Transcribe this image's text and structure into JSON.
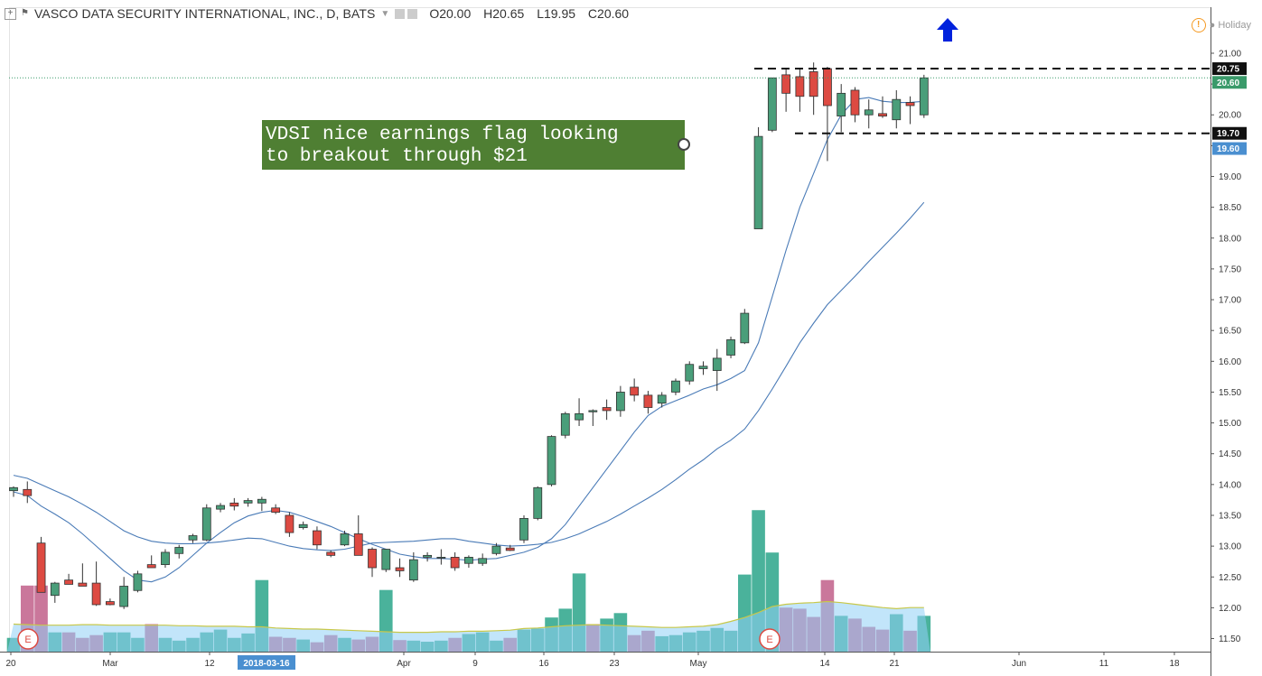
{
  "header": {
    "title": "VASCO DATA SECURITY INTERNATIONAL, INC., D, BATS",
    "open": "O20.00",
    "high": "H20.65",
    "low": "L19.95",
    "close": "C20.60",
    "holiday": "Holiday"
  },
  "annotation": {
    "text": "VDSI nice earnings flag looking\nto breakout through $21"
  },
  "colors": {
    "up": "#4a9e7a",
    "down": "#dd4a42",
    "note_bg": "#4f7f33",
    "arrow": "#0022dd",
    "ma": "#4a7bb7"
  },
  "chart_data": {
    "type": "candlestick",
    "yaxis": {
      "range": [
        11.2,
        21.3
      ],
      "ticks": [
        "11.50",
        "12.00",
        "12.50",
        "13.00",
        "13.50",
        "14.00",
        "14.50",
        "15.00",
        "15.50",
        "16.00",
        "16.50",
        "17.00",
        "17.50",
        "18.00",
        "18.50",
        "19.00",
        "19.50",
        "20.00",
        "20.50",
        "21.00"
      ],
      "price_labels": [
        {
          "value": "20.75",
          "style": "black"
        },
        {
          "value": "20.60",
          "style": "green"
        },
        {
          "value": "19.70",
          "style": "black"
        },
        {
          "value": "19.60",
          "style": "blue"
        }
      ]
    },
    "xaxis": {
      "labels": [
        "20",
        "Mar",
        "12",
        "2018-03-16",
        "Apr",
        "9",
        "16",
        "23",
        "May",
        "14",
        "21",
        "Jun",
        "11",
        "18"
      ],
      "selected": "2018-03-16"
    },
    "candles": [
      {
        "o": 13.9,
        "h": 13.97,
        "l": 13.8,
        "c": 13.95
      },
      {
        "o": 13.92,
        "h": 14.05,
        "l": 13.7,
        "c": 13.82
      },
      {
        "o": 13.05,
        "h": 13.15,
        "l": 12.25,
        "c": 12.25
      },
      {
        "o": 12.2,
        "h": 12.42,
        "l": 12.08,
        "c": 12.4
      },
      {
        "o": 12.45,
        "h": 12.55,
        "l": 12.38,
        "c": 12.38
      },
      {
        "o": 12.4,
        "h": 12.72,
        "l": 12.35,
        "c": 12.35
      },
      {
        "o": 12.4,
        "h": 12.75,
        "l": 12.03,
        "c": 12.05
      },
      {
        "o": 12.1,
        "h": 12.15,
        "l": 12.04,
        "c": 12.05
      },
      {
        "o": 12.02,
        "h": 12.5,
        "l": 11.98,
        "c": 12.35
      },
      {
        "o": 12.28,
        "h": 12.6,
        "l": 12.25,
        "c": 12.55
      },
      {
        "o": 12.7,
        "h": 12.85,
        "l": 12.65,
        "c": 12.65
      },
      {
        "o": 12.7,
        "h": 12.95,
        "l": 12.65,
        "c": 12.9
      },
      {
        "o": 12.88,
        "h": 13.02,
        "l": 12.8,
        "c": 12.98
      },
      {
        "o": 13.1,
        "h": 13.2,
        "l": 13.05,
        "c": 13.17
      },
      {
        "o": 13.1,
        "h": 13.68,
        "l": 13.08,
        "c": 13.62
      },
      {
        "o": 13.6,
        "h": 13.7,
        "l": 13.55,
        "c": 13.66
      },
      {
        "o": 13.7,
        "h": 13.78,
        "l": 13.58,
        "c": 13.65
      },
      {
        "o": 13.7,
        "h": 13.78,
        "l": 13.64,
        "c": 13.74
      },
      {
        "o": 13.7,
        "h": 13.8,
        "l": 13.57,
        "c": 13.76
      },
      {
        "o": 13.62,
        "h": 13.68,
        "l": 13.52,
        "c": 13.55
      },
      {
        "o": 13.5,
        "h": 13.55,
        "l": 13.15,
        "c": 13.22
      },
      {
        "o": 13.3,
        "h": 13.4,
        "l": 13.27,
        "c": 13.35
      },
      {
        "o": 13.25,
        "h": 13.32,
        "l": 12.95,
        "c": 13.02
      },
      {
        "o": 12.9,
        "h": 12.93,
        "l": 12.82,
        "c": 12.85
      },
      {
        "o": 13.02,
        "h": 13.25,
        "l": 13.0,
        "c": 13.2
      },
      {
        "o": 13.2,
        "h": 13.5,
        "l": 12.85,
        "c": 12.85
      },
      {
        "o": 12.95,
        "h": 12.98,
        "l": 12.5,
        "c": 12.65
      },
      {
        "o": 12.62,
        "h": 12.95,
        "l": 12.58,
        "c": 12.95
      },
      {
        "o": 12.65,
        "h": 12.8,
        "l": 12.5,
        "c": 12.6
      },
      {
        "o": 12.45,
        "h": 12.9,
        "l": 12.42,
        "c": 12.78
      },
      {
        "o": 12.82,
        "h": 12.9,
        "l": 12.75,
        "c": 12.85
      },
      {
        "o": 12.82,
        "h": 12.95,
        "l": 12.7,
        "c": 12.82
      },
      {
        "o": 12.82,
        "h": 12.9,
        "l": 12.6,
        "c": 12.65
      },
      {
        "o": 12.72,
        "h": 12.85,
        "l": 12.65,
        "c": 12.82
      },
      {
        "o": 12.72,
        "h": 12.88,
        "l": 12.68,
        "c": 12.8
      },
      {
        "o": 12.88,
        "h": 13.05,
        "l": 12.85,
        "c": 13.0
      },
      {
        "o": 12.97,
        "h": 13.02,
        "l": 12.92,
        "c": 12.93
      },
      {
        "o": 13.1,
        "h": 13.5,
        "l": 13.05,
        "c": 13.45
      },
      {
        "o": 13.45,
        "h": 13.97,
        "l": 13.42,
        "c": 13.95
      },
      {
        "o": 14.0,
        "h": 14.8,
        "l": 13.97,
        "c": 14.78
      },
      {
        "o": 14.8,
        "h": 15.18,
        "l": 14.75,
        "c": 15.15
      },
      {
        "o": 15.05,
        "h": 15.4,
        "l": 14.95,
        "c": 15.15
      },
      {
        "o": 15.18,
        "h": 15.22,
        "l": 14.95,
        "c": 15.2
      },
      {
        "o": 15.25,
        "h": 15.38,
        "l": 15.05,
        "c": 15.2
      },
      {
        "o": 15.2,
        "h": 15.6,
        "l": 15.1,
        "c": 15.5
      },
      {
        "o": 15.58,
        "h": 15.72,
        "l": 15.35,
        "c": 15.45
      },
      {
        "o": 15.45,
        "h": 15.52,
        "l": 15.15,
        "c": 15.25
      },
      {
        "o": 15.32,
        "h": 15.5,
        "l": 15.25,
        "c": 15.45
      },
      {
        "o": 15.5,
        "h": 15.72,
        "l": 15.45,
        "c": 15.68
      },
      {
        "o": 15.68,
        "h": 16.0,
        "l": 15.62,
        "c": 15.95
      },
      {
        "o": 15.88,
        "h": 16.0,
        "l": 15.78,
        "c": 15.92
      },
      {
        "o": 15.85,
        "h": 16.2,
        "l": 15.52,
        "c": 16.05
      },
      {
        "o": 16.1,
        "h": 16.4,
        "l": 16.05,
        "c": 16.35
      },
      {
        "o": 16.3,
        "h": 16.85,
        "l": 16.28,
        "c": 16.78
      },
      {
        "o": 18.15,
        "h": 19.8,
        "l": 18.15,
        "c": 19.65
      },
      {
        "o": 19.75,
        "h": 20.6,
        "l": 19.72,
        "c": 20.6
      },
      {
        "o": 20.65,
        "h": 20.75,
        "l": 20.05,
        "c": 20.35
      },
      {
        "o": 20.62,
        "h": 20.75,
        "l": 20.05,
        "c": 20.3
      },
      {
        "o": 20.7,
        "h": 20.85,
        "l": 20.0,
        "c": 20.3
      },
      {
        "o": 20.75,
        "h": 20.78,
        "l": 19.25,
        "c": 20.15
      },
      {
        "o": 19.98,
        "h": 20.5,
        "l": 19.72,
        "c": 20.35
      },
      {
        "o": 20.4,
        "h": 20.45,
        "l": 19.88,
        "c": 20.0
      },
      {
        "o": 20.0,
        "h": 20.25,
        "l": 19.78,
        "c": 20.08
      },
      {
        "o": 20.02,
        "h": 20.3,
        "l": 19.95,
        "c": 19.98
      },
      {
        "o": 19.92,
        "h": 20.4,
        "l": 19.78,
        "c": 20.25
      },
      {
        "o": 20.2,
        "h": 20.3,
        "l": 19.85,
        "c": 20.15
      },
      {
        "o": 20.0,
        "h": 20.65,
        "l": 19.95,
        "c": 20.6
      }
    ],
    "volume_up": [
      true,
      false,
      false,
      true,
      false,
      false,
      false,
      true,
      true,
      true,
      false,
      true,
      true,
      true,
      true,
      true,
      true,
      true,
      true,
      false,
      false,
      true,
      false,
      false,
      true,
      false,
      false,
      true,
      false,
      true,
      true,
      true,
      false,
      true,
      true,
      true,
      false,
      true,
      true,
      true,
      true,
      true,
      false,
      true,
      true,
      false,
      false,
      true,
      true,
      true,
      true,
      true,
      true,
      true,
      true,
      true,
      false,
      false,
      false,
      false,
      true,
      false,
      false,
      false,
      true,
      false,
      true
    ],
    "volume": [
      0.25,
      1.2,
      1.2,
      0.35,
      0.35,
      0.25,
      0.3,
      0.35,
      0.35,
      0.25,
      0.5,
      0.25,
      0.2,
      0.25,
      0.35,
      0.4,
      0.25,
      0.33,
      1.3,
      0.27,
      0.25,
      0.22,
      0.17,
      0.3,
      0.25,
      0.22,
      0.27,
      1.12,
      0.21,
      0.2,
      0.18,
      0.2,
      0.25,
      0.32,
      0.35,
      0.2,
      0.25,
      0.4,
      0.42,
      0.62,
      0.78,
      1.42,
      0.5,
      0.6,
      0.7,
      0.3,
      0.38,
      0.28,
      0.3,
      0.35,
      0.38,
      0.43,
      0.38,
      1.4,
      2.57,
      1.8,
      0.8,
      0.78,
      0.63,
      1.3,
      0.65,
      0.6,
      0.45,
      0.4,
      0.68,
      0.38,
      0.65
    ],
    "volume_ma": [
      0.5,
      0.49,
      0.48,
      0.48,
      0.48,
      0.49,
      0.49,
      0.48,
      0.48,
      0.48,
      0.48,
      0.48,
      0.47,
      0.47,
      0.46,
      0.46,
      0.46,
      0.45,
      0.45,
      0.43,
      0.42,
      0.41,
      0.41,
      0.4,
      0.39,
      0.38,
      0.37,
      0.36,
      0.35,
      0.35,
      0.35,
      0.36,
      0.36,
      0.37,
      0.37,
      0.38,
      0.39,
      0.42,
      0.43,
      0.45,
      0.47,
      0.48,
      0.49,
      0.48,
      0.47,
      0.46,
      0.45,
      0.44,
      0.44,
      0.45,
      0.46,
      0.49,
      0.55,
      0.62,
      0.71,
      0.82,
      0.86,
      0.88,
      0.89,
      0.91,
      0.89,
      0.86,
      0.83,
      0.8,
      0.78,
      0.8,
      0.8
    ],
    "ma_fast": [
      13.88,
      13.82,
      13.65,
      13.52,
      13.38,
      13.2,
      13.0,
      12.8,
      12.6,
      12.45,
      12.42,
      12.5,
      12.65,
      12.85,
      13.05,
      13.22,
      13.38,
      13.49,
      13.55,
      13.58,
      13.55,
      13.48,
      13.4,
      13.32,
      13.22,
      13.12,
      13.03,
      12.95,
      12.87,
      12.83,
      12.8,
      12.8,
      12.79,
      12.77,
      12.79,
      12.8,
      12.85,
      12.9,
      12.98,
      13.12,
      13.35,
      13.65,
      13.95,
      14.25,
      14.55,
      14.85,
      15.12,
      15.27,
      15.36,
      15.45,
      15.55,
      15.62,
      15.72,
      15.85,
      16.3,
      17.05,
      17.8,
      18.5,
      19.05,
      19.6,
      20.0,
      20.25,
      20.28,
      20.22,
      20.2,
      20.2,
      20.22
    ],
    "ma_slow": [
      14.15,
      14.1,
      14.0,
      13.9,
      13.8,
      13.68,
      13.55,
      13.4,
      13.25,
      13.15,
      13.08,
      13.05,
      13.04,
      13.04,
      13.05,
      13.07,
      13.1,
      13.13,
      13.12,
      13.06,
      13.0,
      12.96,
      12.94,
      12.93,
      12.95,
      13.0,
      13.05,
      13.06,
      13.07,
      13.08,
      13.1,
      13.12,
      13.12,
      13.08,
      13.05,
      13.02,
      13.0,
      13.01,
      13.03,
      13.06,
      13.12,
      13.2,
      13.3,
      13.4,
      13.52,
      13.65,
      13.78,
      13.92,
      14.08,
      14.25,
      14.4,
      14.58,
      14.72,
      14.9,
      15.2,
      15.55,
      15.92,
      16.3,
      16.62,
      16.92,
      17.15,
      17.38,
      17.62,
      17.85,
      18.08,
      18.32,
      18.58
    ]
  }
}
